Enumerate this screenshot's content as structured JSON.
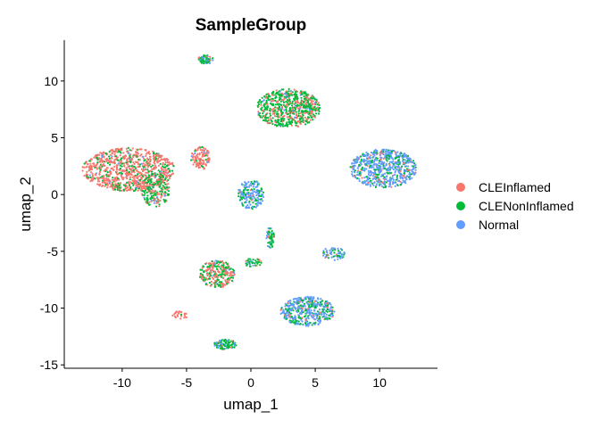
{
  "chart_data": {
    "type": "scatter",
    "title": "SampleGroup",
    "xlabel": "umap_1",
    "ylabel": "umap_2",
    "xlim": [
      -14.5,
      14.5
    ],
    "ylim": [
      -15.3,
      13.6
    ],
    "xticks": [
      -10,
      -5,
      0,
      5,
      10
    ],
    "yticks": [
      -15,
      -10,
      -5,
      0,
      5,
      10
    ],
    "grid": false,
    "legend": "right",
    "series": [
      {
        "name": "CLEInflamed",
        "color": "#F8766D"
      },
      {
        "name": "CLENonInflamed",
        "color": "#00BA38"
      },
      {
        "name": "Normal",
        "color": "#619CFF"
      }
    ],
    "clusters": [
      {
        "cx": -9.5,
        "cy": 2.2,
        "rx": 3.6,
        "ry": 1.9,
        "n": 900,
        "mix": [
          0.75,
          0.22,
          0.03
        ]
      },
      {
        "cx": -7.4,
        "cy": 0.4,
        "rx": 1.1,
        "ry": 1.5,
        "n": 200,
        "mix": [
          0.35,
          0.6,
          0.05
        ]
      },
      {
        "cx": -3.9,
        "cy": 3.2,
        "rx": 0.75,
        "ry": 1.0,
        "n": 110,
        "mix": [
          0.85,
          0.1,
          0.05
        ]
      },
      {
        "cx": -3.5,
        "cy": 11.9,
        "rx": 0.6,
        "ry": 0.4,
        "n": 60,
        "mix": [
          0.1,
          0.65,
          0.25
        ]
      },
      {
        "cx": 2.9,
        "cy": 7.6,
        "rx": 2.5,
        "ry": 1.7,
        "n": 650,
        "mix": [
          0.3,
          0.65,
          0.05
        ]
      },
      {
        "cx": 10.3,
        "cy": 2.3,
        "rx": 2.6,
        "ry": 1.7,
        "n": 650,
        "mix": [
          0.12,
          0.22,
          0.66
        ]
      },
      {
        "cx": 0.0,
        "cy": 0.0,
        "rx": 1.0,
        "ry": 1.3,
        "n": 180,
        "mix": [
          0.05,
          0.35,
          0.6
        ]
      },
      {
        "cx": 1.5,
        "cy": -3.8,
        "rx": 0.3,
        "ry": 1.0,
        "n": 60,
        "mix": [
          0.1,
          0.6,
          0.3
        ]
      },
      {
        "cx": 0.2,
        "cy": -6.0,
        "rx": 0.7,
        "ry": 0.4,
        "n": 40,
        "mix": [
          0.1,
          0.7,
          0.2
        ]
      },
      {
        "cx": -2.6,
        "cy": -7.0,
        "rx": 1.4,
        "ry": 1.2,
        "n": 260,
        "mix": [
          0.55,
          0.4,
          0.05
        ]
      },
      {
        "cx": 6.4,
        "cy": -5.2,
        "rx": 0.9,
        "ry": 0.6,
        "n": 70,
        "mix": [
          0.1,
          0.3,
          0.6
        ]
      },
      {
        "cx": 4.4,
        "cy": -10.3,
        "rx": 2.1,
        "ry": 1.3,
        "n": 450,
        "mix": [
          0.08,
          0.3,
          0.62
        ]
      },
      {
        "cx": -2.0,
        "cy": -13.2,
        "rx": 0.9,
        "ry": 0.45,
        "n": 90,
        "mix": [
          0.1,
          0.6,
          0.3
        ]
      },
      {
        "cx": -5.5,
        "cy": -10.6,
        "rx": 0.6,
        "ry": 0.4,
        "n": 25,
        "mix": [
          0.8,
          0.15,
          0.05
        ]
      }
    ]
  }
}
